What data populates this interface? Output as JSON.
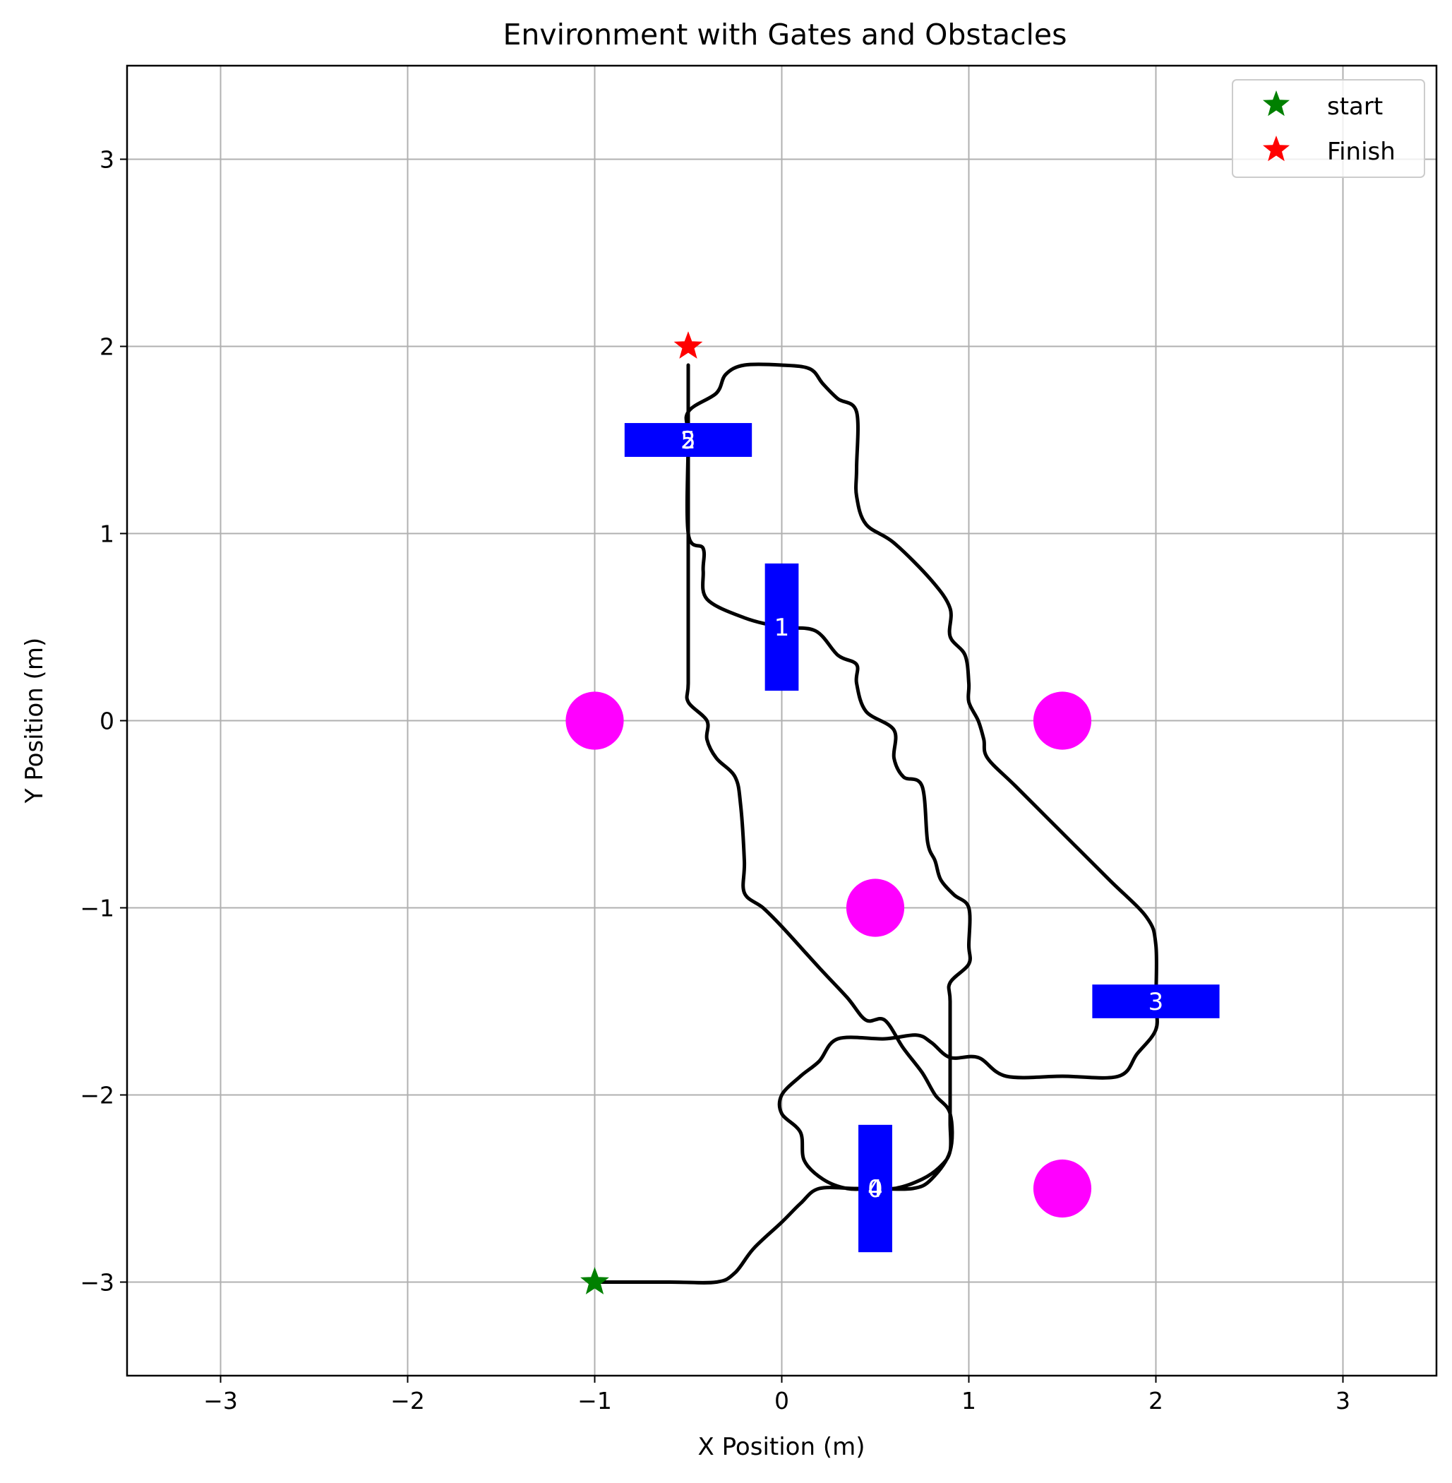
{
  "chart_data": {
    "type": "scatter",
    "title": "Environment with Gates and Obstacles",
    "xlabel": "X Position (m)",
    "ylabel": "Y Position (m)",
    "xlim": [
      -3.5,
      3.5
    ],
    "ylim": [
      -3.5,
      3.5
    ],
    "xticks": [
      -3,
      -2,
      -1,
      0,
      1,
      2,
      3
    ],
    "yticks": [
      -3,
      -2,
      -1,
      0,
      1,
      2,
      3
    ],
    "xtick_labels": [
      "−3",
      "−2",
      "−1",
      "0",
      "1",
      "2",
      "3"
    ],
    "ytick_labels": [
      "−3",
      "−2",
      "−1",
      "0",
      "1",
      "2",
      "3"
    ],
    "grid": true,
    "legend": {
      "placement": "top-right",
      "entries": [
        {
          "label": "start",
          "color": "#008000",
          "marker": "star"
        },
        {
          "label": "Finish",
          "color": "#ff0000",
          "marker": "star"
        }
      ]
    },
    "start": {
      "x": -1.0,
      "y": -3.0,
      "color": "#008000"
    },
    "finish": {
      "x": -0.5,
      "y": 2.0,
      "color": "#ff0000"
    },
    "obstacles": {
      "color": "#ff00ff",
      "points": [
        {
          "x": -1.0,
          "y": 0.0
        },
        {
          "x": 1.5,
          "y": 0.0
        },
        {
          "x": 0.5,
          "y": -1.0
        },
        {
          "x": 1.5,
          "y": -2.5
        }
      ]
    },
    "gates": {
      "color": "#0000ff",
      "items": [
        {
          "label": "0",
          "x": 0.5,
          "y": -2.5,
          "orientation": "vertical"
        },
        {
          "label": "1",
          "x": 0.0,
          "y": 0.5,
          "orientation": "vertical"
        },
        {
          "label": "2",
          "x": -0.5,
          "y": 1.5,
          "orientation": "horizontal"
        },
        {
          "label": "3",
          "x": 2.0,
          "y": -1.5,
          "orientation": "horizontal"
        },
        {
          "label": "4",
          "x": 0.5,
          "y": -2.5,
          "orientation": "vertical"
        },
        {
          "label": "5",
          "x": -0.5,
          "y": 1.5,
          "orientation": "horizontal"
        }
      ]
    },
    "trajectory": {
      "color": "#000000",
      "points": [
        [
          -1.0,
          -3.0
        ],
        [
          -0.6,
          -3.0
        ],
        [
          -0.35,
          -3.0
        ],
        [
          -0.25,
          -2.95
        ],
        [
          -0.15,
          -2.82
        ],
        [
          0.0,
          -2.68
        ],
        [
          0.1,
          -2.58
        ],
        [
          0.2,
          -2.5
        ],
        [
          0.4,
          -2.5
        ],
        [
          0.6,
          -2.5
        ],
        [
          0.75,
          -2.45
        ],
        [
          0.85,
          -2.38
        ],
        [
          0.9,
          -2.3
        ],
        [
          0.9,
          -2.15
        ],
        [
          0.9,
          -2.0
        ],
        [
          0.9,
          -1.8
        ],
        [
          0.9,
          -1.5
        ],
        [
          0.9,
          -1.4
        ],
        [
          1.0,
          -1.3
        ],
        [
          1.0,
          -1.2
        ],
        [
          1.0,
          -1.0
        ],
        [
          0.92,
          -0.93
        ],
        [
          0.85,
          -0.85
        ],
        [
          0.82,
          -0.75
        ],
        [
          0.78,
          -0.65
        ],
        [
          0.75,
          -0.35
        ],
        [
          0.65,
          -0.3
        ],
        [
          0.6,
          -0.2
        ],
        [
          0.6,
          -0.05
        ],
        [
          0.45,
          0.05
        ],
        [
          0.4,
          0.2
        ],
        [
          0.4,
          0.3
        ],
        [
          0.3,
          0.35
        ],
        [
          0.18,
          0.48
        ],
        [
          0.0,
          0.5
        ],
        [
          -0.2,
          0.55
        ],
        [
          -0.4,
          0.65
        ],
        [
          -0.42,
          0.8
        ],
        [
          -0.42,
          0.92
        ],
        [
          -0.5,
          1.0
        ],
        [
          -0.5,
          1.5
        ],
        [
          -0.5,
          1.65
        ],
        [
          -0.35,
          1.75
        ],
        [
          -0.3,
          1.85
        ],
        [
          -0.2,
          1.9
        ],
        [
          0.0,
          1.9
        ],
        [
          0.15,
          1.88
        ],
        [
          0.22,
          1.8
        ],
        [
          0.3,
          1.72
        ],
        [
          0.4,
          1.65
        ],
        [
          0.4,
          1.35
        ],
        [
          0.4,
          1.2
        ],
        [
          0.45,
          1.05
        ],
        [
          0.6,
          0.95
        ],
        [
          0.8,
          0.75
        ],
        [
          0.9,
          0.6
        ],
        [
          0.9,
          0.45
        ],
        [
          0.98,
          0.35
        ],
        [
          1.0,
          0.2
        ],
        [
          1.0,
          0.1
        ],
        [
          1.05,
          0.0
        ],
        [
          1.08,
          -0.1
        ],
        [
          1.1,
          -0.2
        ],
        [
          1.25,
          -0.35
        ],
        [
          1.5,
          -0.6
        ],
        [
          1.75,
          -0.85
        ],
        [
          1.95,
          -1.05
        ],
        [
          2.0,
          -1.2
        ],
        [
          2.0,
          -1.5
        ],
        [
          2.0,
          -1.65
        ],
        [
          1.9,
          -1.78
        ],
        [
          1.8,
          -1.9
        ],
        [
          1.5,
          -1.9
        ],
        [
          1.2,
          -1.9
        ],
        [
          1.05,
          -1.8
        ],
        [
          0.9,
          -1.8
        ],
        [
          0.8,
          -1.72
        ],
        [
          0.72,
          -1.68
        ],
        [
          0.55,
          -1.7
        ],
        [
          0.3,
          -1.7
        ],
        [
          0.2,
          -1.82
        ],
        [
          0.1,
          -1.9
        ],
        [
          0.0,
          -2.0
        ],
        [
          0.0,
          -2.1
        ],
        [
          0.1,
          -2.2
        ],
        [
          0.12,
          -2.35
        ],
        [
          0.22,
          -2.45
        ],
        [
          0.35,
          -2.5
        ],
        [
          0.5,
          -2.5
        ],
        [
          0.7,
          -2.5
        ],
        [
          0.8,
          -2.45
        ],
        [
          0.9,
          -2.3
        ],
        [
          0.9,
          -2.1
        ],
        [
          0.82,
          -2.0
        ],
        [
          0.75,
          -1.88
        ],
        [
          0.65,
          -1.75
        ],
        [
          0.55,
          -1.6
        ],
        [
          0.45,
          -1.6
        ],
        [
          0.35,
          -1.48
        ],
        [
          0.2,
          -1.32
        ],
        [
          0.0,
          -1.1
        ],
        [
          -0.1,
          -1.0
        ],
        [
          -0.2,
          -0.92
        ],
        [
          -0.2,
          -0.75
        ],
        [
          -0.22,
          -0.45
        ],
        [
          -0.25,
          -0.3
        ],
        [
          -0.35,
          -0.2
        ],
        [
          -0.4,
          -0.1
        ],
        [
          -0.4,
          0.0
        ],
        [
          -0.5,
          0.1
        ],
        [
          -0.5,
          0.2
        ],
        [
          -0.5,
          0.5
        ],
        [
          -0.5,
          1.0
        ],
        [
          -0.5,
          1.5
        ],
        [
          -0.5,
          1.9
        ]
      ]
    }
  }
}
